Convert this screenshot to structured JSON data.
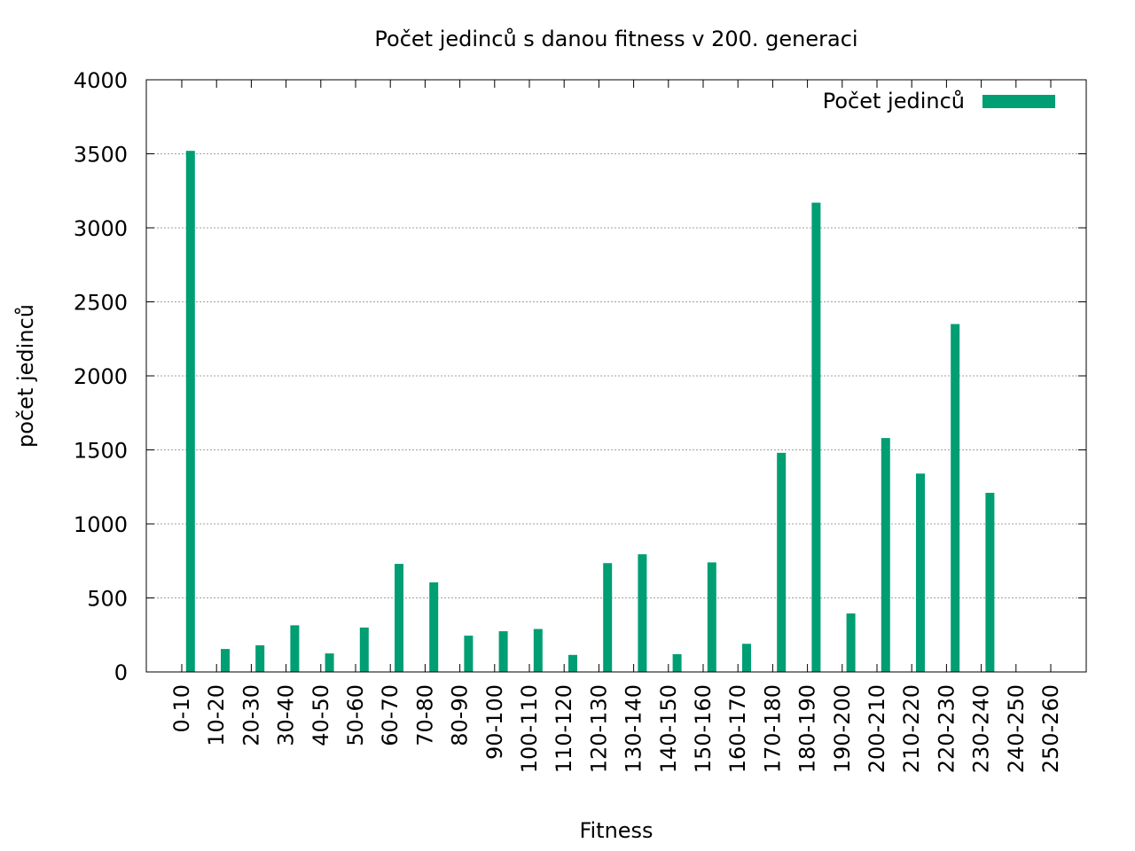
{
  "chart_data": {
    "type": "bar",
    "title": "Počet jedinců s danou fitness v 200. generaci",
    "xlabel": "Fitness",
    "ylabel": "počet jedinců",
    "ylim": [
      0,
      4000
    ],
    "yticks": [
      0,
      500,
      1000,
      1500,
      2000,
      2500,
      3000,
      3500,
      4000
    ],
    "grid": true,
    "legend_position": "top-right",
    "categories": [
      "0-10",
      "10-20",
      "20-30",
      "30-40",
      "40-50",
      "50-60",
      "60-70",
      "70-80",
      "80-90",
      "90-100",
      "100-110",
      "110-120",
      "120-130",
      "130-140",
      "140-150",
      "150-160",
      "160-170",
      "170-180",
      "180-190",
      "190-200",
      "200-210",
      "210-220",
      "220-230",
      "230-240",
      "240-250",
      "250-260"
    ],
    "series": [
      {
        "name": "Počet jedinců",
        "color": "#009e73",
        "values": [
          3520,
          155,
          180,
          315,
          125,
          300,
          730,
          605,
          245,
          275,
          290,
          115,
          735,
          795,
          120,
          740,
          190,
          1480,
          3170,
          395,
          1580,
          1340,
          2350,
          1210,
          0,
          0
        ]
      }
    ]
  }
}
